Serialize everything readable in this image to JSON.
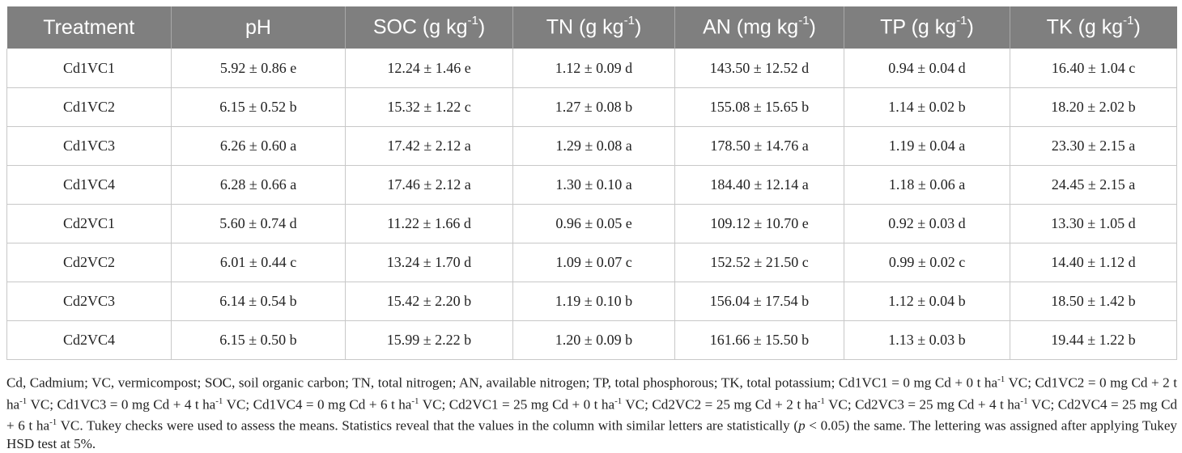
{
  "table": {
    "headers": [
      {
        "base": "Treatment",
        "sup": "",
        "after": ""
      },
      {
        "base": "pH",
        "sup": "",
        "after": ""
      },
      {
        "base": "SOC (g kg",
        "sup": "-1",
        "after": ")"
      },
      {
        "base": "TN (g kg",
        "sup": "-1",
        "after": ")"
      },
      {
        "base": "AN (mg kg",
        "sup": "-1",
        "after": ")"
      },
      {
        "base": "TP (g kg",
        "sup": "-1",
        "after": ")"
      },
      {
        "base": "TK (g kg",
        "sup": "-1",
        "after": ")"
      }
    ],
    "rows": [
      [
        "Cd1VC1",
        "5.92 ± 0.86 e",
        "12.24 ± 1.46 e",
        "1.12 ± 0.09 d",
        "143.50 ± 12.52 d",
        "0.94 ± 0.04 d",
        "16.40 ± 1.04 c"
      ],
      [
        "Cd1VC2",
        "6.15 ± 0.52 b",
        "15.32 ± 1.22 c",
        "1.27 ± 0.08 b",
        "155.08 ± 15.65 b",
        "1.14 ± 0.02 b",
        "18.20 ± 2.02 b"
      ],
      [
        "Cd1VC3",
        "6.26 ± 0.60 a",
        "17.42 ± 2.12 a",
        "1.29 ± 0.08 a",
        "178.50 ± 14.76 a",
        "1.19 ± 0.04 a",
        "23.30 ± 2.15 a"
      ],
      [
        "Cd1VC4",
        "6.28 ± 0.66 a",
        "17.46 ± 2.12 a",
        "1.30 ± 0.10 a",
        "184.40 ± 12.14 a",
        "1.18 ± 0.06 a",
        "24.45 ± 2.15 a"
      ],
      [
        "Cd2VC1",
        "5.60 ± 0.74 d",
        "11.22 ± 1.66 d",
        "0.96 ± 0.05 e",
        "109.12 ± 10.70 e",
        "0.92 ± 0.03 d",
        "13.30 ± 1.05 d"
      ],
      [
        "Cd2VC2",
        "6.01 ± 0.44 c",
        "13.24 ± 1.70 d",
        "1.09 ± 0.07 c",
        "152.52 ± 21.50 c",
        "0.99 ± 0.02 c",
        "14.40 ± 1.12 d"
      ],
      [
        "Cd2VC3",
        "6.14 ± 0.54 b",
        "15.42 ± 2.20 b",
        "1.19 ± 0.10 b",
        "156.04 ± 17.54 b",
        "1.12 ± 0.04 b",
        "18.50 ± 1.42 b"
      ],
      [
        "Cd2VC4",
        "6.15 ± 0.50 b",
        "15.99 ± 2.22 b",
        "1.20 ± 0.09 b",
        "161.66 ± 15.50 b",
        "1.13 ± 0.03 b",
        "19.44 ± 1.22 b"
      ]
    ]
  },
  "footnote": {
    "part1": "Cd, Cadmium; VC, vermicompost; SOC, soil organic carbon; TN, total nitrogen; AN, available nitrogen; TP, total phosphorous; TK, total potassium; Cd1VC1 = 0 mg Cd + 0 t ha",
    "sup1": "-1",
    "part2": " VC; Cd1VC2 = 0 mg Cd + 2 t ha",
    "sup2": "-1",
    "part3": " VC; Cd1VC3 = 0 mg Cd + 4 t ha",
    "sup3": "-1",
    "part4": " VC; Cd1VC4 = 0 mg Cd + 6 t ha",
    "sup4": "-1",
    "part5": " VC; Cd2VC1 = 25 mg Cd + 0 t ha",
    "sup5": "-1",
    "part6": " VC; Cd2VC2 = 25 mg Cd + 2 t ha",
    "sup6": "-1",
    "part7": " VC; Cd2VC3 = 25 mg Cd + 4 t ha",
    "sup7": "-1",
    "part8": " VC; Cd2VC4 = 25 mg Cd + 6 t ha",
    "sup8": "-1",
    "part9": " VC. Tukey checks were used to assess the means. Statistics reveal that the values in the column with similar letters are statistically (",
    "italic_p": "p",
    "part10": " < 0.05) the same. The lettering was assigned after applying Tukey HSD test at 5%."
  }
}
